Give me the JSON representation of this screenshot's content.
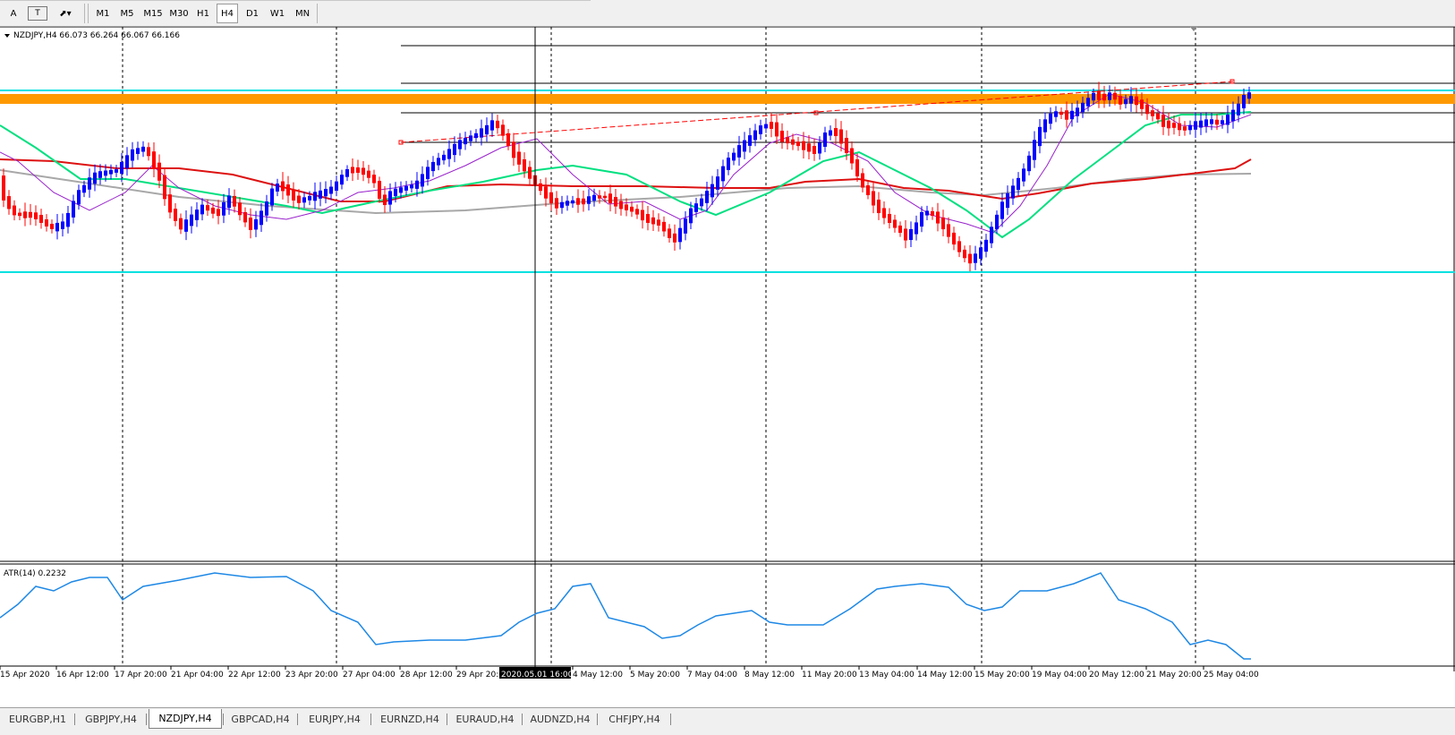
{
  "toolbar": {
    "tools": [
      {
        "name": "text-tool-icon",
        "glyph": "A"
      },
      {
        "name": "text-label-tool-icon",
        "glyph": "T"
      },
      {
        "name": "arrows-tool-icon",
        "glyph": "⬈▾"
      }
    ],
    "timeframes": [
      "M1",
      "M5",
      "M15",
      "M30",
      "H1",
      "H4",
      "D1",
      "W1",
      "MN"
    ],
    "active_timeframe": "H4"
  },
  "chart": {
    "symbol_info": "NZDJPY,H4  66.073 66.264 66.067 66.166",
    "indicator_label": "ATR(14) 0.2232",
    "crosshair_time": "2020.05.01 16:00",
    "x_axis_labels": [
      "15 Apr 2020",
      "16 Apr 12:00",
      "17 Apr 20:00",
      "21 Apr 04:00",
      "22 Apr 12:00",
      "23 Apr 20:00",
      "27 Apr 04:00",
      "28 Apr 12:00",
      "29 Apr 20:00",
      "4 May 12:00",
      "5 May 20:00",
      "7 May 04:00",
      "8 May 12:00",
      "11 May 20:00",
      "13 May 04:00",
      "14 May 12:00",
      "15 May 20:00",
      "19 May 04:00",
      "20 May 12:00",
      "21 May 20:00",
      "25 May 04:00"
    ],
    "colors": {
      "bull_candle": "#0000ff",
      "bear_candle": "#ff0000",
      "ma_slow": "#dd1111",
      "ma_mid": "#00e080",
      "ma_fast": "#9922cc",
      "ma_200": "#a8a8a8",
      "zone": "#ff9900",
      "cyan_level": "#00e0e0",
      "atr_line": "#1e88e5",
      "trendline": "#ff0000"
    }
  },
  "tabs": [
    "EURGBP,H1",
    "GBPJPY,H4",
    "NZDJPY,H4",
    "GBPCAD,H4",
    "EURJPY,H4",
    "EURNZD,H4",
    "EURAUD,H4",
    "AUDNZD,H4",
    "CHFJPY,H4"
  ],
  "active_tab": "NZDJPY,H4"
}
